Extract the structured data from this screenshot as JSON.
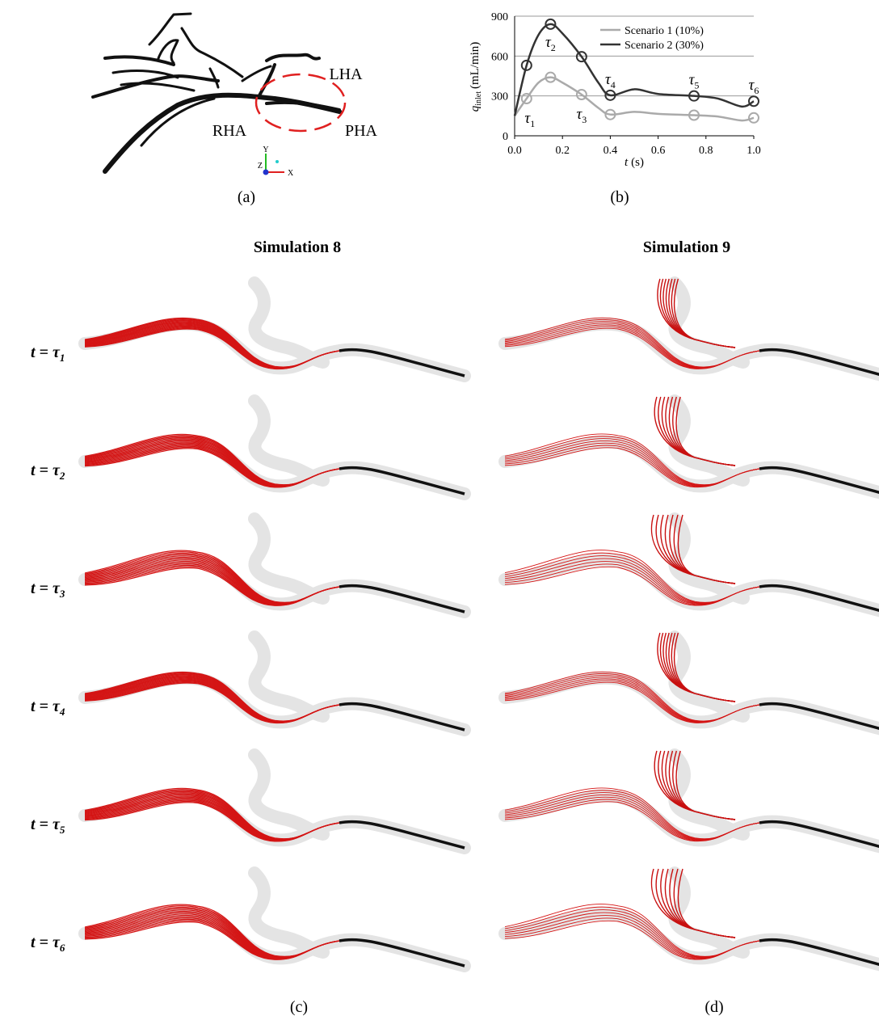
{
  "panel_a": {
    "labels": [
      "LHA",
      "RHA",
      "PHA"
    ],
    "axes": [
      "Y",
      "Z",
      "X"
    ],
    "caption": "(a)"
  },
  "chart_data": {
    "type": "line",
    "x_label_var": "t",
    "x_label_unit": "(s)",
    "y_label_var": "q",
    "y_label_sub": "inlet",
    "y_label_unit": "(mL/min)",
    "x": [
      0,
      0.05,
      0.1,
      0.15,
      0.2,
      0.28,
      0.35,
      0.4,
      0.5,
      0.6,
      0.75,
      0.85,
      0.95,
      1.0
    ],
    "series": [
      {
        "name": "Scenario 1 (10%)",
        "color": "#aaaaaa",
        "values": [
          150,
          280,
          400,
          440,
          400,
          310,
          210,
          160,
          180,
          165,
          155,
          145,
          115,
          135
        ]
      },
      {
        "name": "Scenario 2 (30%)",
        "color": "#333333",
        "values": [
          150,
          530,
          760,
          840,
          770,
          595,
          400,
          305,
          350,
          315,
          300,
          280,
          220,
          260
        ]
      }
    ],
    "annotations": [
      {
        "label": "τ",
        "sub": "1",
        "x": 0.05
      },
      {
        "label": "τ",
        "sub": "2",
        "x": 0.15
      },
      {
        "label": "τ",
        "sub": "3",
        "x": 0.28
      },
      {
        "label": "τ",
        "sub": "4",
        "x": 0.4
      },
      {
        "label": "τ",
        "sub": "5",
        "x": 0.75
      },
      {
        "label": "τ",
        "sub": "6",
        "x": 1.0
      }
    ],
    "xlim": [
      0,
      1
    ],
    "xticks": [
      {
        "value": 0,
        "label": "0.0"
      },
      0.2,
      0.4,
      0.6,
      0.8,
      {
        "value": 1,
        "label": "1.0"
      }
    ],
    "ylim": [
      0,
      900
    ],
    "yticks": [
      0,
      300,
      600,
      900
    ],
    "grid": true,
    "legend": "top-right",
    "caption": "(b)"
  },
  "simulations": {
    "headers": [
      "Simulation 8",
      "Simulation 9"
    ],
    "rows": [
      {
        "text": "t = τ",
        "sub": "1"
      },
      {
        "text": "t = τ",
        "sub": "2"
      },
      {
        "text": "t = τ",
        "sub": "3"
      },
      {
        "text": "t = τ",
        "sub": "4"
      },
      {
        "text": "t = τ",
        "sub": "5"
      },
      {
        "text": "t = τ",
        "sub": "6"
      }
    ],
    "captions": [
      "(c)",
      "(d)"
    ]
  }
}
